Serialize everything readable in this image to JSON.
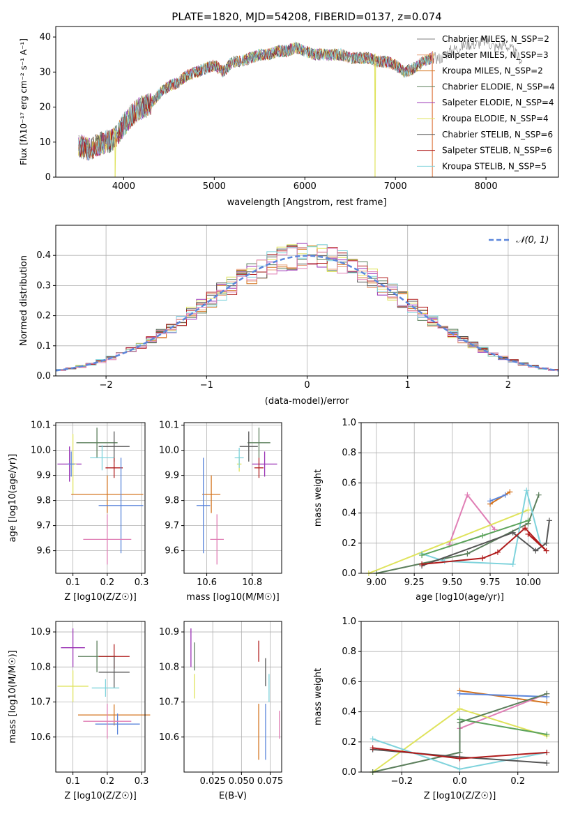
{
  "colors": [
    "#7f7f7f",
    "#e8a07a",
    "#d4741f",
    "#5c7f5c",
    "#9a33b5",
    "#dfe35c",
    "#555555",
    "#b01c1c",
    "#7fd3dc",
    "#5b86db",
    "#e07fb5",
    "#5ca35c"
  ],
  "chart_data": [
    {
      "id": "spectrum",
      "type": "line",
      "title": "PLATE=1820, MJD=54208, FIBERID=0137, z=0.074",
      "xlabel": "wavelength [Angstrom, rest frame]",
      "ylabel": "Flux [fλ10⁻¹⁷ erg cm⁻² s⁻¹ A⁻¹]",
      "xlim": [
        3250,
        8800
      ],
      "ylim": [
        0,
        43
      ],
      "xticks": [
        "4000",
        "5000",
        "6000",
        "7000",
        "8000"
      ],
      "yticks": [
        "0",
        "10",
        "20",
        "30",
        "40"
      ],
      "legend_position": "right",
      "legend": [
        "Chabrier MILES, N_SSP=2",
        "Salpeter MILES, N_SSP=3",
        "Kroupa MILES, N_SSP=2",
        "Chabrier ELODIE, N_SSP=4",
        "Salpeter ELODIE, N_SSP=4",
        "Kroupa ELODIE, N_SSP=4",
        "Chabrier STELIB, N_SSP=6",
        "Salpeter STELIB, N_SSP=6",
        "Kroupa STELIB, N_SSP=5"
      ],
      "anchors_x": [
        3500,
        3600,
        3700,
        3800,
        3900,
        4000,
        4100,
        4200,
        4300,
        4400,
        4500,
        4600,
        4700,
        4800,
        4900,
        5000,
        5100,
        5200,
        5300,
        5400,
        5500,
        5600,
        5700,
        5800,
        5900,
        6000,
        6100,
        6200,
        6300,
        6400,
        6500,
        6600,
        6700,
        6800,
        6900,
        7000,
        7100,
        7200,
        7300,
        7400,
        7500,
        7600,
        7700,
        7800,
        7900,
        8000,
        8100,
        8200,
        8300,
        8400
      ],
      "anchors_y": [
        9,
        8,
        9,
        10,
        11,
        15,
        18,
        20,
        21,
        24,
        26,
        27,
        29,
        30,
        31,
        32,
        30,
        33,
        33,
        34,
        35,
        35,
        36,
        36,
        37,
        36,
        35,
        35,
        35,
        35,
        34,
        34,
        34,
        33,
        33,
        32,
        30,
        31,
        33,
        34,
        34,
        36,
        37,
        38,
        38,
        39,
        37,
        38,
        36,
        33
      ],
      "drops": [
        [
          3905,
          0
        ],
        [
          6775,
          0
        ],
        [
          7410,
          0
        ]
      ]
    },
    {
      "id": "residuals",
      "type": "histogram",
      "xlabel": "(data-model)/error",
      "ylabel": "Normed distribution",
      "xlim": [
        -2.5,
        2.5
      ],
      "ylim": [
        0,
        0.5
      ],
      "xticks": [
        "−2",
        "−1",
        "0",
        "1",
        "2"
      ],
      "yticks": [
        "0.0",
        "0.1",
        "0.2",
        "0.3",
        "0.4"
      ],
      "legend": [
        "𝒩(0, 1)"
      ],
      "legend_position": "top-right",
      "bin_width": 0.1
    },
    {
      "id": "age-vs-Z",
      "type": "errorbar",
      "xlabel": "Z [log10(Z/Z☉)]",
      "ylabel": "age  [log10(age/yr)]",
      "xlim": [
        0.05,
        0.31
      ],
      "ylim": [
        9.51,
        10.11
      ],
      "xticks": [
        "0.1",
        "0.2",
        "0.3"
      ],
      "yticks": [
        "9.6",
        "9.7",
        "9.8",
        "9.9",
        "10.0",
        "10.1"
      ],
      "points": [
        {
          "x": 0.09,
          "y": 9.945,
          "dx": 0.035,
          "dy": 0.07,
          "c": 4
        },
        {
          "x": 0.1,
          "y": 9.945,
          "dx": 0.01,
          "dy": 0.12,
          "c": 5
        },
        {
          "x": 0.095,
          "y": 9.945,
          "dx": 0.01,
          "dy": 0.05,
          "c": 9
        },
        {
          "x": 0.17,
          "y": 10.03,
          "dx": 0.06,
          "dy": 0.06,
          "c": 3
        },
        {
          "x": 0.22,
          "y": 10.015,
          "dx": 0.045,
          "dy": 0.06,
          "c": 6
        },
        {
          "x": 0.185,
          "y": 9.97,
          "dx": 0.035,
          "dy": 0.05,
          "c": 8
        },
        {
          "x": 0.22,
          "y": 9.93,
          "dx": 0.025,
          "dy": 0.04,
          "c": 7
        },
        {
          "x": 0.2,
          "y": 9.825,
          "dx": 0.105,
          "dy": 0.075,
          "c": 2
        },
        {
          "x": 0.24,
          "y": 9.78,
          "dx": 0.065,
          "dy": 0.19,
          "c": 9
        },
        {
          "x": 0.2,
          "y": 9.645,
          "dx": 0.07,
          "dy": 0.1,
          "c": 10
        }
      ]
    },
    {
      "id": "age-vs-mass",
      "type": "errorbar",
      "xlabel": "mass [log10(M/M☉)]",
      "ylabel": "",
      "xlim": [
        10.5,
        10.93
      ],
      "ylim": [
        9.51,
        10.11
      ],
      "xticks": [
        "10.6",
        "10.8"
      ],
      "yticks": [
        "9.6",
        "9.7",
        "9.8",
        "9.9",
        "10.0",
        "10.1"
      ],
      "points": [
        {
          "x": 10.855,
          "y": 9.945,
          "dx": 0.055,
          "dy": 0.05,
          "c": 4
        },
        {
          "x": 10.743,
          "y": 9.945,
          "dx": 0.01,
          "dy": 0.03,
          "c": 5
        },
        {
          "x": 10.743,
          "y": 9.97,
          "dx": 0.02,
          "dy": 0.04,
          "c": 8
        },
        {
          "x": 10.83,
          "y": 10.03,
          "dx": 0.05,
          "dy": 0.06,
          "c": 3
        },
        {
          "x": 10.785,
          "y": 10.015,
          "dx": 0.04,
          "dy": 0.06,
          "c": 6
        },
        {
          "x": 10.83,
          "y": 9.93,
          "dx": 0.02,
          "dy": 0.04,
          "c": 7
        },
        {
          "x": 10.62,
          "y": 9.825,
          "dx": 0.04,
          "dy": 0.075,
          "c": 2
        },
        {
          "x": 10.585,
          "y": 9.78,
          "dx": 0.03,
          "dy": 0.19,
          "c": 9
        },
        {
          "x": 10.645,
          "y": 9.645,
          "dx": 0.03,
          "dy": 0.1,
          "c": 10
        }
      ]
    },
    {
      "id": "weight-vs-age",
      "type": "line",
      "xlabel": "age  [log10(age/yr)]",
      "ylabel": "mass weight",
      "xlim": [
        8.9,
        10.2
      ],
      "ylim": [
        0,
        1
      ],
      "xticks": [
        "9.00",
        "9.25",
        "9.50",
        "9.75",
        "10.00"
      ],
      "yticks": [
        "0.0",
        "0.2",
        "0.4",
        "0.6",
        "0.8",
        "1.0"
      ],
      "series": [
        {
          "c": 2,
          "x": [
            9.75,
            9.88
          ],
          "y": [
            0.46,
            0.54
          ]
        },
        {
          "c": 9,
          "x": [
            9.75,
            9.85
          ],
          "y": [
            0.48,
            0.52
          ]
        },
        {
          "c": 10,
          "x": [
            9.48,
            9.6,
            9.78
          ],
          "y": [
            0.19,
            0.52,
            0.29
          ]
        },
        {
          "c": 5,
          "x": [
            8.95,
            10.0
          ],
          "y": [
            0.0,
            0.42
          ]
        },
        {
          "c": 3,
          "x": [
            9.0,
            9.6,
            10.0,
            10.07
          ],
          "y": [
            0.0,
            0.13,
            0.33,
            0.52
          ]
        },
        {
          "c": 8,
          "x": [
            9.3,
            9.45,
            9.9,
            9.99,
            10.08
          ],
          "y": [
            0.13,
            0.08,
            0.06,
            0.55,
            0.2
          ]
        },
        {
          "c": 6,
          "x": [
            9.3,
            9.9,
            10.05,
            10.12,
            10.14
          ],
          "y": [
            0.05,
            0.27,
            0.15,
            0.2,
            0.35
          ]
        },
        {
          "c": 7,
          "x": [
            9.3,
            9.7,
            9.8,
            9.98,
            10.12,
            10.0
          ],
          "y": [
            0.06,
            0.1,
            0.14,
            0.3,
            0.15,
            0.26
          ]
        },
        {
          "c": 11,
          "x": [
            9.3,
            9.7,
            10.0
          ],
          "y": [
            0.12,
            0.25,
            0.35
          ]
        }
      ]
    },
    {
      "id": "mass-vs-Z",
      "type": "errorbar",
      "xlabel": "Z [log10(Z/Z☉)]",
      "ylabel": "mass [log10(M/M☉)]",
      "xlim": [
        0.05,
        0.31
      ],
      "ylim": [
        10.5,
        10.93
      ],
      "xticks": [
        "0.1",
        "0.2",
        "0.3"
      ],
      "yticks": [
        "10.6",
        "10.7",
        "10.8",
        "10.9"
      ],
      "points": [
        {
          "x": 0.1,
          "y": 10.855,
          "dx": 0.035,
          "dy": 0.055,
          "c": 4
        },
        {
          "x": 0.1,
          "y": 10.745,
          "dx": 0.045,
          "dy": 0.045,
          "c": 5
        },
        {
          "x": 0.17,
          "y": 10.83,
          "dx": 0.055,
          "dy": 0.045,
          "c": 3
        },
        {
          "x": 0.22,
          "y": 10.83,
          "dx": 0.045,
          "dy": 0.035,
          "c": 7
        },
        {
          "x": 0.22,
          "y": 10.785,
          "dx": 0.045,
          "dy": 0.045,
          "c": 6
        },
        {
          "x": 0.195,
          "y": 10.74,
          "dx": 0.04,
          "dy": 0.025,
          "c": 8
        },
        {
          "x": 0.22,
          "y": 10.663,
          "dx": 0.105,
          "dy": 0.03,
          "c": 2
        },
        {
          "x": 0.23,
          "y": 10.637,
          "dx": 0.065,
          "dy": 0.03,
          "c": 9
        },
        {
          "x": 0.2,
          "y": 10.645,
          "dx": 0.07,
          "dy": 0.05,
          "c": 10
        }
      ]
    },
    {
      "id": "mass-vs-ebv",
      "type": "errorbar",
      "xlabel": "E(B-V)",
      "ylabel": "",
      "xlim": [
        0.0,
        0.085
      ],
      "ylim": [
        10.5,
        10.93
      ],
      "xticks": [
        "0.025",
        "0.050",
        "0.075"
      ],
      "yticks": [
        "10.6",
        "10.7",
        "10.8",
        "10.9"
      ],
      "points": [
        {
          "x": 0.006,
          "y": 10.855,
          "dx": 0,
          "dy": 0.055,
          "c": 4
        },
        {
          "x": 0.009,
          "y": 10.745,
          "dx": 0,
          "dy": 0.035,
          "c": 5
        },
        {
          "x": 0.009,
          "y": 10.83,
          "dx": 0,
          "dy": 0.04,
          "c": 3
        },
        {
          "x": 0.065,
          "y": 10.845,
          "dx": 0,
          "dy": 0.03,
          "c": 7
        },
        {
          "x": 0.071,
          "y": 10.785,
          "dx": 0,
          "dy": 0.04,
          "c": 6
        },
        {
          "x": 0.074,
          "y": 10.74,
          "dx": 0,
          "dy": 0.04,
          "c": 8
        },
        {
          "x": 0.065,
          "y": 10.615,
          "dx": 0,
          "dy": 0.08,
          "c": 2
        },
        {
          "x": 0.071,
          "y": 10.615,
          "dx": 0,
          "dy": 0.08,
          "c": 9
        },
        {
          "x": 0.083,
          "y": 10.635,
          "dx": 0,
          "dy": 0.04,
          "c": 10
        }
      ]
    },
    {
      "id": "weight-vs-Z",
      "type": "line",
      "xlabel": "Z [log10(Z/Z☉)]",
      "ylabel": "mass weight",
      "xlim": [
        -0.34,
        0.34
      ],
      "ylim": [
        0,
        1
      ],
      "xticks": [
        "−0.2",
        "0.0",
        "0.2"
      ],
      "yticks": [
        "0.0",
        "0.2",
        "0.4",
        "0.6",
        "0.8",
        "1.0"
      ],
      "series": [
        {
          "c": 2,
          "x": [
            0.0,
            0.3
          ],
          "y": [
            0.54,
            0.46
          ]
        },
        {
          "c": 9,
          "x": [
            0.0,
            0.3
          ],
          "y": [
            0.52,
            0.5
          ]
        },
        {
          "c": 10,
          "x": [
            0.0,
            0.3
          ],
          "y": [
            0.29,
            0.52
          ]
        },
        {
          "c": 5,
          "x": [
            -0.3,
            0.0,
            0.3
          ],
          "y": [
            0.0,
            0.42,
            0.24
          ]
        },
        {
          "c": 3,
          "x": [
            -0.3,
            0.0,
            0.0,
            0.3
          ],
          "y": [
            0.0,
            0.13,
            0.33,
            0.52
          ]
        },
        {
          "c": 8,
          "x": [
            -0.3,
            0.0,
            0.3
          ],
          "y": [
            0.22,
            0.02,
            0.13
          ]
        },
        {
          "c": 6,
          "x": [
            -0.3,
            0.0,
            0.3
          ],
          "y": [
            0.15,
            0.1,
            0.06
          ]
        },
        {
          "c": 7,
          "x": [
            -0.3,
            0.0,
            0.3
          ],
          "y": [
            0.16,
            0.09,
            0.13
          ]
        },
        {
          "c": 11,
          "x": [
            0.0,
            0.3
          ],
          "y": [
            0.35,
            0.25
          ]
        }
      ]
    }
  ]
}
